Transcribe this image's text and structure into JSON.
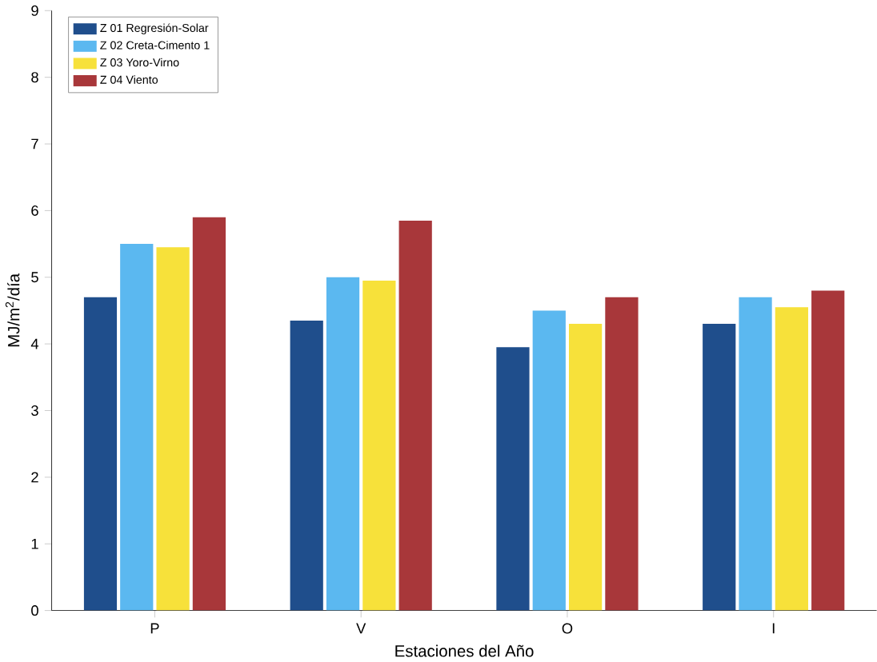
{
  "chart_data": {
    "type": "bar",
    "xlabel": "Estaciones del Año",
    "ylabel": "MJ/m$^{2}$/día",
    "categories": [
      "P",
      "V",
      "O",
      "I"
    ],
    "series": [
      {
        "name": "Z 01 Regresión-Solar",
        "color": "#1f4e8c",
        "values": [
          4.7,
          4.35,
          3.95,
          4.3
        ]
      },
      {
        "name": "Z 02 Creta-Cimento 1",
        "color": "#5bb8f0",
        "values": [
          5.5,
          5.0,
          4.5,
          4.7
        ]
      },
      {
        "name": "Z 03 Yoro-Virno",
        "color": "#f7e13a",
        "values": [
          5.45,
          4.95,
          4.3,
          4.55
        ]
      },
      {
        "name": "Z 04 Viento",
        "color": "#a8373a",
        "values": [
          5.9,
          5.85,
          4.7,
          4.8
        ]
      }
    ],
    "ylim": [
      0,
      9
    ],
    "yticks": [
      0,
      1,
      2,
      3,
      4,
      5,
      6,
      7,
      8,
      9
    ],
    "legend": "top left",
    "grid": false
  }
}
